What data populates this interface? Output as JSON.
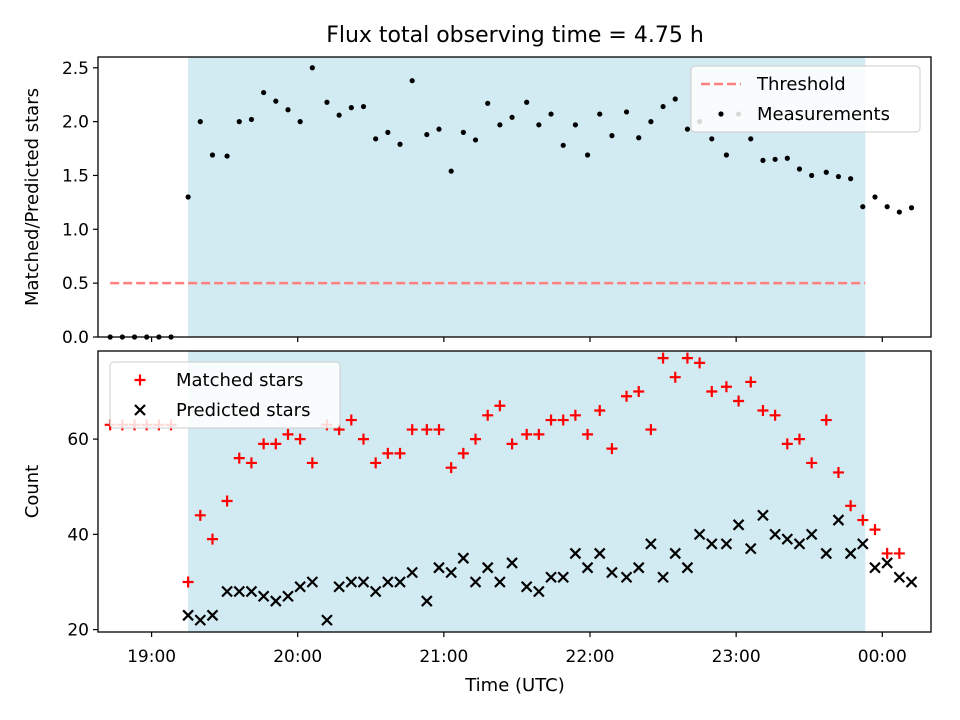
{
  "title": "Flux total observing time = 4.75 h",
  "xlabel": "Time (UTC)",
  "x_ticks": [
    "19:00",
    "20:00",
    "21:00",
    "22:00",
    "23:00",
    "00:00"
  ],
  "colors": {
    "shade": "#add8e6",
    "threshold": "#ff7f7f",
    "matched": "#ff0000",
    "predicted": "#000000",
    "measurement": "#000000"
  },
  "chart_data": [
    {
      "type": "scatter",
      "ylabel": "Matched/Predicted stars",
      "xlim": [
        "18:38",
        "00:20"
      ],
      "ylim": [
        0,
        2.6
      ],
      "y_ticks": [
        "0.0",
        "0.5",
        "1.0",
        "1.5",
        "2.0",
        "2.5"
      ],
      "legend_position": "top-right",
      "shaded_interval": [
        "19:15",
        "23:53"
      ],
      "threshold": {
        "name": "Threshold",
        "value": 0.5,
        "x": [
          "18:43",
          "23:53"
        ]
      },
      "series": [
        {
          "name": "Measurements",
          "points": [
            [
              "18:43",
              0.0
            ],
            [
              "18:48",
              0.0
            ],
            [
              "18:53",
              0.0
            ],
            [
              "18:58",
              0.0
            ],
            [
              "19:03",
              0.0
            ],
            [
              "19:08",
              0.0
            ],
            [
              "19:15",
              1.3
            ],
            [
              "19:20",
              2.0
            ],
            [
              "19:25",
              1.69
            ],
            [
              "19:31",
              1.68
            ],
            [
              "19:36",
              2.0
            ],
            [
              "19:41",
              2.02
            ],
            [
              "19:46",
              2.27
            ],
            [
              "19:51",
              2.19
            ],
            [
              "19:56",
              2.11
            ],
            [
              "20:01",
              2.0
            ],
            [
              "20:06",
              2.5
            ],
            [
              "20:12",
              2.18
            ],
            [
              "20:17",
              2.06
            ],
            [
              "20:22",
              2.13
            ],
            [
              "20:27",
              2.14
            ],
            [
              "20:32",
              1.84
            ],
            [
              "20:37",
              1.9
            ],
            [
              "20:42",
              1.79
            ],
            [
              "20:47",
              2.38
            ],
            [
              "20:53",
              1.88
            ],
            [
              "20:58",
              1.93
            ],
            [
              "21:03",
              1.54
            ],
            [
              "21:08",
              1.9
            ],
            [
              "21:13",
              1.83
            ],
            [
              "21:18",
              2.17
            ],
            [
              "21:23",
              1.97
            ],
            [
              "21:28",
              2.04
            ],
            [
              "21:34",
              2.18
            ],
            [
              "21:39",
              1.97
            ],
            [
              "21:44",
              2.07
            ],
            [
              "21:49",
              1.78
            ],
            [
              "21:54",
              1.97
            ],
            [
              "21:59",
              1.69
            ],
            [
              "22:04",
              2.07
            ],
            [
              "22:09",
              1.87
            ],
            [
              "22:15",
              2.09
            ],
            [
              "22:20",
              1.85
            ],
            [
              "22:25",
              2.0
            ],
            [
              "22:30",
              2.14
            ],
            [
              "22:35",
              2.21
            ],
            [
              "22:40",
              1.93
            ],
            [
              "22:45",
              2.0
            ],
            [
              "22:50",
              1.84
            ],
            [
              "22:56",
              1.69
            ],
            [
              "23:01",
              2.07
            ],
            [
              "23:06",
              1.84
            ],
            [
              "23:11",
              1.64
            ],
            [
              "23:16",
              1.65
            ],
            [
              "23:21",
              1.66
            ],
            [
              "23:26",
              1.56
            ],
            [
              "23:31",
              1.5
            ],
            [
              "23:37",
              1.53
            ],
            [
              "23:42",
              1.49
            ],
            [
              "23:47",
              1.47
            ],
            [
              "23:52",
              1.21
            ],
            [
              "23:57",
              1.3
            ],
            [
              "00:02",
              1.21
            ],
            [
              "00:07",
              1.16
            ],
            [
              "00:12",
              1.2
            ]
          ]
        }
      ]
    },
    {
      "type": "scatter",
      "ylabel": "Count",
      "xlim": [
        "18:38",
        "00:20"
      ],
      "ylim": [
        19.5,
        78.5
      ],
      "y_ticks": [
        "20",
        "40",
        "60"
      ],
      "legend_position": "top-left",
      "shaded_interval": [
        "19:15",
        "23:53"
      ],
      "series": [
        {
          "name": "Matched stars",
          "marker": "+",
          "points": [
            [
              "18:43",
              63
            ],
            [
              "18:48",
              63
            ],
            [
              "18:53",
              63
            ],
            [
              "18:58",
              63
            ],
            [
              "19:03",
              63
            ],
            [
              "19:08",
              63
            ],
            [
              "19:15",
              30
            ],
            [
              "19:20",
              44
            ],
            [
              "19:25",
              39
            ],
            [
              "19:31",
              47
            ],
            [
              "19:36",
              56
            ],
            [
              "19:41",
              55
            ],
            [
              "19:46",
              59
            ],
            [
              "19:51",
              59
            ],
            [
              "19:56",
              61
            ],
            [
              "20:01",
              60
            ],
            [
              "20:06",
              55
            ],
            [
              "20:12",
              63
            ],
            [
              "20:17",
              62
            ],
            [
              "20:22",
              64
            ],
            [
              "20:27",
              60
            ],
            [
              "20:32",
              55
            ],
            [
              "20:37",
              57
            ],
            [
              "20:42",
              57
            ],
            [
              "20:47",
              62
            ],
            [
              "20:53",
              62
            ],
            [
              "20:58",
              62
            ],
            [
              "21:03",
              54
            ],
            [
              "21:08",
              57
            ],
            [
              "21:13",
              60
            ],
            [
              "21:18",
              65
            ],
            [
              "21:23",
              67
            ],
            [
              "21:28",
              59
            ],
            [
              "21:34",
              61
            ],
            [
              "21:39",
              61
            ],
            [
              "21:44",
              64
            ],
            [
              "21:49",
              64
            ],
            [
              "21:54",
              65
            ],
            [
              "21:59",
              61
            ],
            [
              "22:04",
              66
            ],
            [
              "22:09",
              58
            ],
            [
              "22:15",
              69
            ],
            [
              "22:20",
              70
            ],
            [
              "22:25",
              62
            ],
            [
              "22:30",
              77
            ],
            [
              "22:35",
              73
            ],
            [
              "22:40",
              77
            ],
            [
              "22:45",
              76
            ],
            [
              "22:50",
              70
            ],
            [
              "22:56",
              71
            ],
            [
              "23:01",
              68
            ],
            [
              "23:06",
              72
            ],
            [
              "23:11",
              66
            ],
            [
              "23:16",
              65
            ],
            [
              "23:21",
              59
            ],
            [
              "23:26",
              60
            ],
            [
              "23:31",
              55
            ],
            [
              "23:37",
              64
            ],
            [
              "23:42",
              53
            ],
            [
              "23:47",
              46
            ],
            [
              "23:52",
              43
            ],
            [
              "23:57",
              41
            ],
            [
              "00:02",
              36
            ],
            [
              "00:07",
              36
            ]
          ]
        },
        {
          "name": "Predicted stars",
          "marker": "x",
          "points": [
            [
              "19:15",
              23
            ],
            [
              "19:20",
              22
            ],
            [
              "19:25",
              23
            ],
            [
              "19:31",
              28
            ],
            [
              "19:36",
              28
            ],
            [
              "19:41",
              28
            ],
            [
              "19:46",
              27
            ],
            [
              "19:51",
              26
            ],
            [
              "19:56",
              27
            ],
            [
              "20:01",
              29
            ],
            [
              "20:06",
              30
            ],
            [
              "20:12",
              22
            ],
            [
              "20:17",
              29
            ],
            [
              "20:22",
              30
            ],
            [
              "20:27",
              30
            ],
            [
              "20:32",
              28
            ],
            [
              "20:37",
              30
            ],
            [
              "20:42",
              30
            ],
            [
              "20:47",
              32
            ],
            [
              "20:53",
              26
            ],
            [
              "20:58",
              33
            ],
            [
              "21:03",
              32
            ],
            [
              "21:08",
              35
            ],
            [
              "21:13",
              30
            ],
            [
              "21:18",
              33
            ],
            [
              "21:23",
              30
            ],
            [
              "21:28",
              34
            ],
            [
              "21:34",
              29
            ],
            [
              "21:39",
              28
            ],
            [
              "21:44",
              31
            ],
            [
              "21:49",
              31
            ],
            [
              "21:54",
              36
            ],
            [
              "21:59",
              33
            ],
            [
              "22:04",
              36
            ],
            [
              "22:09",
              32
            ],
            [
              "22:15",
              31
            ],
            [
              "22:20",
              33
            ],
            [
              "22:25",
              38
            ],
            [
              "22:30",
              31
            ],
            [
              "22:35",
              36
            ],
            [
              "22:40",
              33
            ],
            [
              "22:45",
              40
            ],
            [
              "22:50",
              38
            ],
            [
              "22:56",
              38
            ],
            [
              "23:01",
              42
            ],
            [
              "23:06",
              37
            ],
            [
              "23:11",
              44
            ],
            [
              "23:16",
              40
            ],
            [
              "23:21",
              39
            ],
            [
              "23:26",
              38
            ],
            [
              "23:31",
              40
            ],
            [
              "23:37",
              36
            ],
            [
              "23:42",
              43
            ],
            [
              "23:47",
              36
            ],
            [
              "23:52",
              38
            ],
            [
              "23:57",
              33
            ],
            [
              "00:02",
              34
            ],
            [
              "00:07",
              31
            ],
            [
              "00:12",
              30
            ]
          ]
        }
      ]
    }
  ]
}
